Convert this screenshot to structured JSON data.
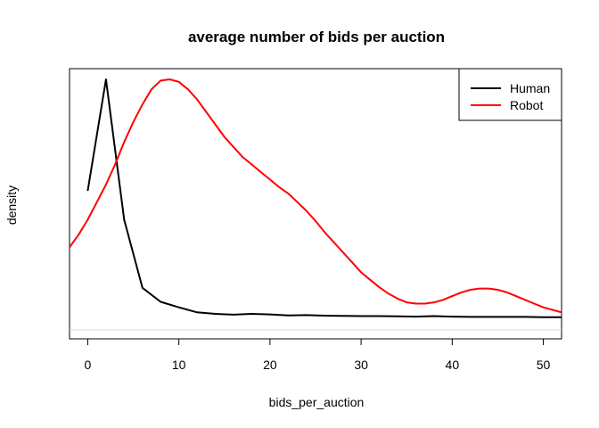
{
  "chart_data": {
    "type": "line",
    "title": "average number of bids per auction",
    "xlabel": "bids_per_auction",
    "ylabel": "density",
    "xlim": [
      -2,
      52
    ],
    "ylim": [
      0,
      1
    ],
    "x_ticks": [
      0,
      10,
      20,
      30,
      40,
      50
    ],
    "y_ticks_shown": false,
    "legend_position": "top-right",
    "grid": false,
    "series": [
      {
        "name": "Human",
        "color": "#000000",
        "x": [
          0,
          2,
          4,
          6,
          8,
          10,
          12,
          14,
          16,
          18,
          20,
          22,
          24,
          26,
          28,
          30,
          32,
          34,
          36,
          38,
          40,
          42,
          44,
          46,
          48,
          50,
          52
        ],
        "y": [
          0.555,
          1.0,
          0.44,
          0.168,
          0.112,
          0.09,
          0.07,
          0.064,
          0.061,
          0.064,
          0.062,
          0.058,
          0.059,
          0.057,
          0.056,
          0.055,
          0.055,
          0.054,
          0.053,
          0.055,
          0.053,
          0.052,
          0.052,
          0.052,
          0.052,
          0.051,
          0.051
        ]
      },
      {
        "name": "Robot",
        "color": "#ff0000",
        "x": [
          -2,
          -1,
          0,
          1,
          2,
          3,
          4,
          5,
          6,
          7,
          8,
          9,
          10,
          11,
          12,
          13,
          14,
          15,
          16,
          17,
          18,
          19,
          20,
          21,
          22,
          23,
          24,
          25,
          26,
          27,
          28,
          29,
          30,
          31,
          32,
          33,
          34,
          35,
          36,
          37,
          38,
          39,
          40,
          41,
          42,
          43,
          44,
          45,
          46,
          47,
          48,
          49,
          50,
          51,
          52
        ],
        "y": [
          0.33,
          0.38,
          0.44,
          0.51,
          0.58,
          0.66,
          0.75,
          0.83,
          0.9,
          0.96,
          0.995,
          1.0,
          0.99,
          0.96,
          0.92,
          0.87,
          0.82,
          0.77,
          0.73,
          0.69,
          0.66,
          0.63,
          0.6,
          0.57,
          0.545,
          0.51,
          0.475,
          0.435,
          0.39,
          0.35,
          0.31,
          0.27,
          0.23,
          0.2,
          0.17,
          0.145,
          0.125,
          0.11,
          0.105,
          0.105,
          0.11,
          0.12,
          0.135,
          0.15,
          0.16,
          0.165,
          0.165,
          0.16,
          0.15,
          0.135,
          0.12,
          0.105,
          0.09,
          0.08,
          0.07
        ]
      }
    ]
  }
}
